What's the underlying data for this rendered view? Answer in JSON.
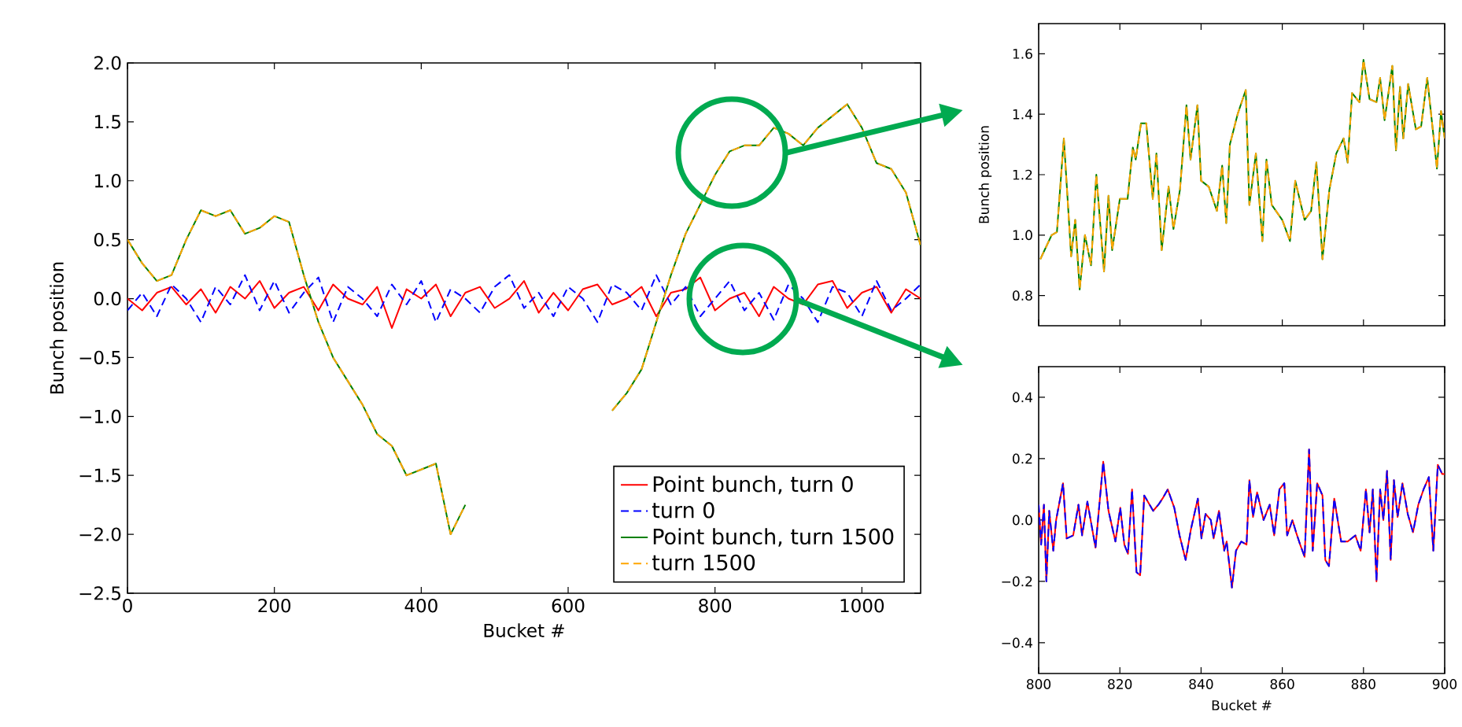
{
  "chart_data": [
    {
      "type": "line",
      "xlabel": "Bucket #",
      "ylabel": "Bunch position",
      "xlim": [
        0,
        1080
      ],
      "xticks": [
        0,
        200,
        400,
        600,
        800,
        1000
      ],
      "ylim": [
        -2.5,
        2.0
      ],
      "yticks": [
        {
          "value": -2.5,
          "label": "−2.5"
        },
        {
          "value": -2.0,
          "label": "−2.0"
        },
        {
          "value": -1.5,
          "label": "−1.5"
        },
        {
          "value": -1.0,
          "label": "−1.0"
        },
        {
          "value": -0.5,
          "label": "−0.5"
        },
        {
          "value": 0.0,
          "label": "0.0"
        },
        {
          "value": 0.5,
          "label": "0.5"
        },
        {
          "value": 1.0,
          "label": "1.0"
        },
        {
          "value": 1.5,
          "label": "1.5"
        },
        {
          "value": 2.0,
          "label": "2.0"
        }
      ],
      "legend": "bottom right",
      "grid": false,
      "x": [
        0,
        20,
        40,
        60,
        80,
        100,
        120,
        140,
        160,
        180,
        200,
        220,
        240,
        260,
        280,
        300,
        320,
        340,
        360,
        380,
        400,
        420,
        440,
        460,
        480,
        500,
        520,
        540,
        560,
        580,
        600,
        620,
        640,
        660,
        680,
        700,
        720,
        740,
        760,
        780,
        800,
        820,
        840,
        860,
        880,
        900,
        920,
        940,
        960,
        980,
        1000,
        1020,
        1040,
        1060,
        1080
      ],
      "series": [
        {
          "name": "Point bunch, turn 0",
          "color": "#ff0000",
          "line_style": "solid",
          "values": [
            0.0,
            -0.1,
            0.05,
            0.1,
            -0.05,
            0.08,
            -0.12,
            0.1,
            0.0,
            0.15,
            -0.08,
            0.05,
            0.1,
            -0.1,
            0.12,
            0.0,
            -0.05,
            0.1,
            -0.25,
            0.08,
            0.0,
            0.12,
            -0.15,
            0.05,
            0.1,
            -0.08,
            0.0,
            0.15,
            -0.12,
            0.05,
            -0.1,
            0.08,
            0.12,
            -0.05,
            0.0,
            0.1,
            -0.15,
            0.05,
            0.08,
            0.18,
            -0.1,
            0.0,
            0.05,
            -0.15,
            0.1,
            0.0,
            -0.05,
            0.12,
            0.15,
            -0.08,
            0.05,
            0.1,
            -0.12,
            0.08,
            0.0
          ]
        },
        {
          "name": "turn 0",
          "color": "#0000ff",
          "line_style": "dashed",
          "values": [
            -0.1,
            0.05,
            -0.15,
            0.12,
            0.0,
            -0.2,
            0.1,
            -0.05,
            0.2,
            -0.1,
            0.15,
            -0.12,
            0.05,
            0.18,
            -0.2,
            0.1,
            0.0,
            -0.15,
            0.12,
            -0.05,
            0.15,
            -0.2,
            0.08,
            0.0,
            -0.12,
            0.1,
            0.2,
            -0.08,
            0.05,
            -0.15,
            0.1,
            0.0,
            -0.2,
            0.12,
            0.05,
            -0.1,
            0.2,
            -0.05,
            0.1,
            -0.15,
            0.0,
            0.15,
            -0.1,
            0.05,
            -0.18,
            0.12,
            0.0,
            -0.2,
            0.1,
            0.05,
            -0.15,
            0.15,
            -0.1,
            0.0,
            0.12
          ]
        },
        {
          "name": "Point bunch, turn 1500",
          "color": "#008000",
          "line_style": "solid",
          "values": [
            0.5,
            0.3,
            0.15,
            0.2,
            0.5,
            0.75,
            0.7,
            0.75,
            0.55,
            0.6,
            0.7,
            0.65,
            0.2,
            -0.2,
            -0.5,
            -0.7,
            -0.9,
            -1.15,
            -1.25,
            -1.5,
            -1.45,
            -1.4,
            -2.0,
            -1.75,
            null,
            null,
            null,
            null,
            null,
            null,
            null,
            null,
            null,
            -0.95,
            -0.8,
            -0.6,
            -0.2,
            0.2,
            0.55,
            0.8,
            1.05,
            1.25,
            1.3,
            1.3,
            1.45,
            1.4,
            1.3,
            1.45,
            1.55,
            1.65,
            1.45,
            1.15,
            1.1,
            0.9,
            0.45
          ]
        },
        {
          "name": "turn 1500",
          "color": "#ffa500",
          "line_style": "dashed",
          "values": [
            0.5,
            0.3,
            0.15,
            0.2,
            0.5,
            0.75,
            0.7,
            0.75,
            0.55,
            0.6,
            0.7,
            0.65,
            0.2,
            -0.2,
            -0.5,
            -0.7,
            -0.9,
            -1.15,
            -1.25,
            -1.5,
            -1.45,
            -1.4,
            -2.0,
            -1.75,
            null,
            null,
            null,
            null,
            null,
            null,
            null,
            null,
            null,
            -0.95,
            -0.8,
            -0.6,
            -0.2,
            0.2,
            0.55,
            0.8,
            1.05,
            1.25,
            1.3,
            1.3,
            1.45,
            1.4,
            1.3,
            1.45,
            1.55,
            1.65,
            1.45,
            1.15,
            1.1,
            0.9,
            0.45
          ]
        }
      ]
    },
    {
      "type": "line",
      "ylabel": "Bunch position",
      "xlim": [
        800,
        900
      ],
      "xticks": [
        800,
        820,
        840,
        860,
        880,
        900
      ],
      "ylim": [
        0.7,
        1.7
      ],
      "yticks": [
        0.8,
        {
          "value": 1.0,
          "label": "1.0"
        },
        1.2,
        1.4,
        1.6
      ],
      "tick_labels": "y",
      "grid": false,
      "x": [
        800.4,
        803.2,
        804.5,
        806.2,
        808.0,
        809.0,
        810.1,
        811.4,
        812.9,
        814.2,
        816.1,
        817.2,
        818.1,
        820.0,
        821.9,
        823.2,
        823.9,
        825.2,
        826.5,
        828.1,
        829.0,
        830.3,
        832.0,
        833.2,
        834.8,
        836.4,
        837.4,
        839.1,
        840.0,
        841.9,
        843.9,
        845.2,
        846.2,
        847.1,
        849.0,
        851.0,
        851.9,
        853.5,
        855.1,
        856.1,
        857.4,
        860.0,
        861.9,
        863.2,
        865.5,
        867.1,
        868.4,
        869.9,
        871.6,
        873.3,
        875.1,
        876.1,
        877.2,
        879.0,
        880.0,
        881.5,
        883.2,
        884.1,
        885.2,
        887.1,
        888.0,
        889.0,
        889.8,
        891.0,
        892.9,
        894.2,
        895.7,
        898.1,
        899.1,
        900.0
      ],
      "series": [
        {
          "color": "#008000",
          "line_style": "solid",
          "values": [
            0.92,
            1.0,
            1.01,
            1.32,
            0.93,
            1.05,
            0.82,
            1.0,
            0.9,
            1.2,
            0.88,
            1.13,
            0.95,
            1.12,
            1.12,
            1.29,
            1.25,
            1.37,
            1.37,
            1.12,
            1.27,
            0.95,
            1.16,
            1.02,
            1.15,
            1.43,
            1.25,
            1.43,
            1.18,
            1.16,
            1.08,
            1.23,
            1.04,
            1.3,
            1.4,
            1.48,
            1.1,
            1.27,
            0.98,
            1.25,
            1.1,
            1.05,
            0.98,
            1.18,
            1.05,
            1.08,
            1.24,
            0.92,
            1.15,
            1.27,
            1.32,
            1.24,
            1.47,
            1.44,
            1.58,
            1.45,
            1.44,
            1.52,
            1.38,
            1.56,
            1.28,
            1.49,
            1.32,
            1.5,
            1.35,
            1.36,
            1.52,
            1.22,
            1.41,
            1.32
          ]
        },
        {
          "color": "#ffa500",
          "line_style": "dashed",
          "values": [
            0.92,
            1.0,
            1.01,
            1.32,
            0.93,
            1.05,
            0.82,
            1.0,
            0.9,
            1.2,
            0.88,
            1.13,
            0.95,
            1.12,
            1.12,
            1.29,
            1.25,
            1.37,
            1.37,
            1.12,
            1.27,
            0.95,
            1.16,
            1.02,
            1.15,
            1.43,
            1.25,
            1.43,
            1.18,
            1.16,
            1.08,
            1.23,
            1.04,
            1.3,
            1.4,
            1.48,
            1.1,
            1.27,
            0.98,
            1.25,
            1.1,
            1.05,
            0.98,
            1.18,
            1.05,
            1.08,
            1.24,
            0.92,
            1.15,
            1.27,
            1.32,
            1.24,
            1.47,
            1.44,
            1.58,
            1.45,
            1.44,
            1.52,
            1.38,
            1.56,
            1.28,
            1.49,
            1.32,
            1.5,
            1.35,
            1.36,
            1.52,
            1.22,
            1.41,
            1.32
          ]
        }
      ]
    },
    {
      "type": "line",
      "xlabel": "Bucket #",
      "xlim": [
        800,
        900
      ],
      "xticks": [
        800,
        820,
        840,
        860,
        880,
        900
      ],
      "ylim": [
        -0.5,
        0.5
      ],
      "yticks": [
        {
          "value": -0.4,
          "label": "−0.4"
        },
        {
          "value": -0.2,
          "label": "−0.2"
        },
        {
          "value": 0.0,
          "label": "0.0"
        },
        {
          "value": 0.2,
          "label": "0.2"
        },
        {
          "value": 0.4,
          "label": "0.4"
        }
      ],
      "grid": false,
      "x": [
        800.0,
        800.6,
        801.3,
        801.9,
        802.6,
        803.6,
        804.3,
        806.0,
        806.9,
        808.5,
        809.8,
        810.7,
        812.0,
        814.0,
        815.9,
        817.2,
        818.9,
        820.1,
        821.1,
        822.0,
        823.0,
        824.1,
        825.0,
        826.0,
        828.2,
        829.5,
        830.5,
        831.8,
        833.4,
        834.7,
        836.2,
        837.5,
        839.2,
        840.1,
        841.1,
        842.4,
        843.1,
        844.4,
        845.7,
        846.3,
        847.6,
        848.6,
        849.9,
        851.2,
        851.9,
        852.8,
        853.8,
        855.4,
        856.9,
        858.0,
        859.3,
        860.5,
        861.2,
        862.5,
        863.4,
        864.4,
        865.5,
        866.6,
        867.5,
        868.6,
        869.9,
        870.6,
        871.5,
        872.8,
        874.5,
        876.1,
        878.0,
        879.3,
        880.6,
        881.5,
        882.3,
        883.2,
        884.1,
        884.9,
        885.8,
        886.7,
        887.5,
        888.4,
        889.6,
        890.9,
        892.2,
        893.5,
        894.8,
        896.1,
        897.2,
        898.3,
        899.4,
        900.0
      ],
      "series": [
        {
          "color": "#ff0000",
          "line_style": "solid",
          "values": [
            0.05,
            -0.08,
            0.05,
            -0.2,
            0.03,
            -0.1,
            0.0,
            0.12,
            -0.06,
            -0.05,
            0.05,
            -0.05,
            0.06,
            -0.09,
            0.19,
            0.03,
            -0.07,
            0.04,
            -0.08,
            -0.11,
            0.1,
            -0.17,
            -0.18,
            0.08,
            0.03,
            0.05,
            0.07,
            0.1,
            0.04,
            -0.05,
            -0.13,
            -0.03,
            0.07,
            -0.06,
            0.02,
            0.0,
            -0.06,
            0.03,
            -0.1,
            -0.07,
            -0.22,
            -0.1,
            -0.07,
            -0.08,
            0.13,
            0.01,
            0.09,
            0.0,
            0.05,
            -0.05,
            0.1,
            0.12,
            -0.05,
            0.0,
            -0.04,
            -0.08,
            -0.12,
            0.23,
            -0.1,
            0.12,
            0.08,
            -0.13,
            -0.15,
            0.07,
            -0.07,
            -0.07,
            -0.05,
            -0.1,
            0.1,
            -0.04,
            0.1,
            -0.2,
            0.1,
            0.0,
            0.16,
            -0.13,
            0.13,
            0.01,
            0.12,
            0.02,
            -0.04,
            0.05,
            0.1,
            0.14,
            -0.1,
            0.18,
            0.15,
            0.15
          ]
        },
        {
          "color": "#0000ff",
          "line_style": "dashed",
          "values": [
            0.05,
            -0.08,
            0.05,
            -0.2,
            0.03,
            -0.1,
            0.0,
            0.12,
            -0.06,
            -0.05,
            0.05,
            -0.05,
            0.06,
            -0.09,
            0.19,
            0.03,
            -0.07,
            0.04,
            -0.08,
            -0.11,
            0.1,
            -0.17,
            -0.18,
            0.08,
            0.03,
            0.05,
            0.07,
            0.1,
            0.04,
            -0.05,
            -0.13,
            -0.03,
            0.07,
            -0.06,
            0.02,
            0.0,
            -0.06,
            0.03,
            -0.1,
            -0.07,
            -0.22,
            -0.1,
            -0.07,
            -0.08,
            0.13,
            0.01,
            0.09,
            0.0,
            0.05,
            -0.05,
            0.1,
            0.12,
            -0.05,
            0.0,
            -0.04,
            -0.08,
            -0.12,
            0.23,
            -0.1,
            0.12,
            0.08,
            -0.13,
            -0.15,
            0.07,
            -0.07,
            -0.07,
            -0.05,
            -0.1,
            0.1,
            -0.04,
            0.1,
            -0.2,
            0.1,
            0.0,
            0.16,
            -0.13,
            0.13,
            0.01,
            0.12,
            0.02,
            -0.04,
            0.05,
            0.1,
            0.14,
            -0.1,
            0.18,
            0.15,
            0.15
          ]
        }
      ]
    }
  ]
}
